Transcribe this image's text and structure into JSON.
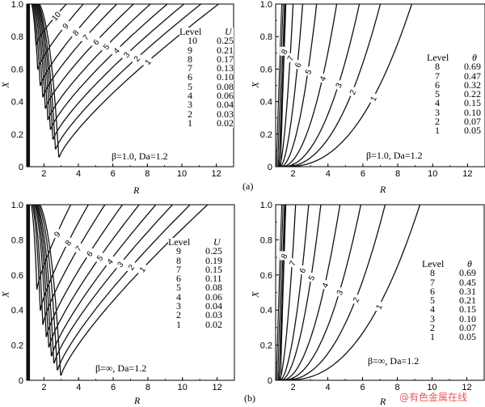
{
  "figure": {
    "tag_a": "(a)",
    "tag_b": "(b)",
    "watermark": "@有色金属在线"
  },
  "chart_data": [
    {
      "type": "contour",
      "id": "top-left",
      "xlabel": "R",
      "ylabel": "X",
      "xlim": [
        1,
        13
      ],
      "ylim": [
        0,
        1
      ],
      "xticks": [
        "2",
        "4",
        "6",
        "8",
        "10",
        "12"
      ],
      "yticks": [
        "0",
        "0.2",
        "0.4",
        "0.6",
        "0.8",
        "1.0"
      ],
      "caption": "β=1.0, Da=1.2",
      "legend_header": [
        "Level",
        "U"
      ],
      "legend": [
        {
          "level": "10",
          "value": "0.25"
        },
        {
          "level": "9",
          "value": "0.21"
        },
        {
          "level": "8",
          "value": "0.17"
        },
        {
          "level": "7",
          "value": "0.13"
        },
        {
          "level": "6",
          "value": "0.10"
        },
        {
          "level": "5",
          "value": "0.08"
        },
        {
          "level": "4",
          "value": "0.06"
        },
        {
          "level": "3",
          "value": "0.04"
        },
        {
          "level": "2",
          "value": "0.03"
        },
        {
          "level": "1",
          "value": "0.02"
        }
      ],
      "contour_labels": [
        "10",
        "9",
        "8",
        "7",
        "6",
        "5",
        "4",
        "3",
        "2",
        "1"
      ],
      "curve_vertex_x": [
        1.55,
        1.65,
        1.8,
        1.95,
        2.1,
        2.25,
        2.4,
        2.55,
        2.7,
        2.9
      ],
      "curve_vertex_y": [
        0.75,
        0.6,
        0.5,
        0.43,
        0.36,
        0.29,
        0.23,
        0.17,
        0.11,
        0.06
      ]
    },
    {
      "type": "contour",
      "id": "top-right",
      "xlabel": "R",
      "ylabel": "X",
      "xlim": [
        1,
        13
      ],
      "ylim": [
        0,
        1
      ],
      "xticks": [
        "2",
        "4",
        "6",
        "8",
        "10",
        "12"
      ],
      "yticks": [
        "0",
        "0.2",
        "0.4",
        "0.6",
        "0.8",
        "1.0"
      ],
      "caption": "β=1.0, Da=1.2",
      "legend_header": [
        "Level",
        "θ"
      ],
      "legend": [
        {
          "level": "8",
          "value": "0.69"
        },
        {
          "level": "7",
          "value": "0.47"
        },
        {
          "level": "6",
          "value": "0.32"
        },
        {
          "level": "5",
          "value": "0.22"
        },
        {
          "level": "4",
          "value": "0.15"
        },
        {
          "level": "3",
          "value": "0.10"
        },
        {
          "level": "2",
          "value": "0.07"
        },
        {
          "level": "1",
          "value": "0.05"
        }
      ],
      "contour_labels": [
        "8",
        "7",
        "6",
        "5",
        "4",
        "3",
        "2",
        "1"
      ],
      "curve_top_x": [
        1.55,
        2.0,
        2.55,
        3.35,
        4.5,
        5.8,
        7.0,
        8.8
      ]
    },
    {
      "type": "contour",
      "id": "bottom-left",
      "xlabel": "R",
      "ylabel": "X",
      "xlim": [
        1,
        13
      ],
      "ylim": [
        0,
        1
      ],
      "xticks": [
        "2",
        "4",
        "6",
        "8",
        "10",
        "12"
      ],
      "yticks": [
        "0",
        "0.2",
        "0.4",
        "0.6",
        "0.8",
        "1.0"
      ],
      "caption": "β=∞, Da=1.2",
      "legend_header": [
        "Level",
        "U"
      ],
      "legend": [
        {
          "level": "9",
          "value": "0.25"
        },
        {
          "level": "8",
          "value": "0.19"
        },
        {
          "level": "7",
          "value": "0.15"
        },
        {
          "level": "6",
          "value": "0.11"
        },
        {
          "level": "5",
          "value": "0.08"
        },
        {
          "level": "4",
          "value": "0.06"
        },
        {
          "level": "3",
          "value": "0.04"
        },
        {
          "level": "2",
          "value": "0.03"
        },
        {
          "level": "1",
          "value": "0.02"
        }
      ],
      "contour_labels": [
        "9",
        "8",
        "7",
        "6",
        "5",
        "4",
        "3",
        "2",
        "1"
      ],
      "curve_vertex_x": [
        1.6,
        1.8,
        1.95,
        2.15,
        2.3,
        2.45,
        2.6,
        2.8,
        3.0
      ],
      "curve_vertex_y": [
        0.52,
        0.4,
        0.32,
        0.25,
        0.19,
        0.14,
        0.1,
        0.06,
        0.03
      ]
    },
    {
      "type": "contour",
      "id": "bottom-right",
      "xlabel": "R",
      "ylabel": "X",
      "xlim": [
        1,
        13
      ],
      "ylim": [
        0,
        1
      ],
      "xticks": [
        "2",
        "4",
        "6",
        "8",
        "10",
        "12"
      ],
      "yticks": [
        "0",
        "0.2",
        "0.4",
        "0.6",
        "0.8",
        "1.0"
      ],
      "caption": "β=∞, Da=1.2",
      "legend_header": [
        "Level",
        "θ"
      ],
      "legend": [
        {
          "level": "8",
          "value": "0.69"
        },
        {
          "level": "7",
          "value": "0.45"
        },
        {
          "level": "6",
          "value": "0.31"
        },
        {
          "level": "5",
          "value": "0.21"
        },
        {
          "level": "4",
          "value": "0.15"
        },
        {
          "level": "3",
          "value": "0.10"
        },
        {
          "level": "2",
          "value": "0.07"
        },
        {
          "level": "1",
          "value": "0.05"
        }
      ],
      "contour_labels": [
        "8",
        "7",
        "6",
        "5",
        "4",
        "3",
        "2",
        "1"
      ],
      "curve_top_x": [
        1.55,
        2.15,
        2.9,
        3.6,
        4.7,
        5.9,
        7.3,
        9.3
      ]
    }
  ]
}
